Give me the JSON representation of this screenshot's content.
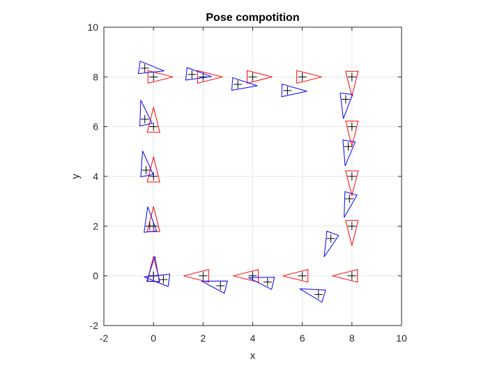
{
  "chart_data": {
    "type": "scatter",
    "title": "Pose compotition",
    "xlabel": "x",
    "ylabel": "y",
    "xlim": [
      -2,
      10
    ],
    "ylim": [
      -2,
      10
    ],
    "xticks": [
      "-2",
      "0",
      "2",
      "4",
      "6",
      "8",
      "10"
    ],
    "yticks": [
      "-2",
      "0",
      "2",
      "4",
      "6",
      "8",
      "10"
    ],
    "grid": true,
    "marker": "triangle with + at pose position, apex pointing along heading",
    "series": [
      {
        "color": "#ff0000",
        "points": [
          {
            "x": 0,
            "y": 0,
            "theta_deg": 90
          },
          {
            "x": 0,
            "y": 2,
            "theta_deg": 90
          },
          {
            "x": 0,
            "y": 4,
            "theta_deg": 90
          },
          {
            "x": 0,
            "y": 6,
            "theta_deg": 90
          },
          {
            "x": 0,
            "y": 8,
            "theta_deg": 0
          },
          {
            "x": 2,
            "y": 8,
            "theta_deg": 0
          },
          {
            "x": 4,
            "y": 8,
            "theta_deg": 0
          },
          {
            "x": 6,
            "y": 8,
            "theta_deg": 0
          },
          {
            "x": 8,
            "y": 8,
            "theta_deg": -90
          },
          {
            "x": 8,
            "y": 6,
            "theta_deg": -90
          },
          {
            "x": 8,
            "y": 4,
            "theta_deg": -90
          },
          {
            "x": 8,
            "y": 2,
            "theta_deg": -90
          },
          {
            "x": 8,
            "y": 0,
            "theta_deg": 180
          },
          {
            "x": 6,
            "y": 0,
            "theta_deg": 180
          },
          {
            "x": 4,
            "y": 0,
            "theta_deg": 180
          },
          {
            "x": 2,
            "y": 0,
            "theta_deg": 180
          }
        ]
      },
      {
        "color": "#0000ff",
        "points": [
          {
            "x": 0,
            "y": 0,
            "theta_deg": 86
          },
          {
            "x": -0.15,
            "y": 2.0,
            "theta_deg": 96
          },
          {
            "x": -0.3,
            "y": 4.25,
            "theta_deg": 100
          },
          {
            "x": -0.35,
            "y": 6.3,
            "theta_deg": 102
          },
          {
            "x": -0.35,
            "y": 8.35,
            "theta_deg": -8
          },
          {
            "x": 1.55,
            "y": 8.1,
            "theta_deg": -6
          },
          {
            "x": 3.4,
            "y": 7.7,
            "theta_deg": -4
          },
          {
            "x": 5.4,
            "y": 7.45,
            "theta_deg": -2
          },
          {
            "x": 7.75,
            "y": 7.1,
            "theta_deg": -97
          },
          {
            "x": 7.85,
            "y": 5.2,
            "theta_deg": -99
          },
          {
            "x": 7.9,
            "y": 3.1,
            "theta_deg": -106
          },
          {
            "x": 7.15,
            "y": 1.5,
            "theta_deg": -110
          },
          {
            "x": 6.65,
            "y": -0.75,
            "theta_deg": 163
          },
          {
            "x": 4.6,
            "y": -0.25,
            "theta_deg": 167
          },
          {
            "x": 2.7,
            "y": -0.4,
            "theta_deg": 166
          },
          {
            "x": 0.4,
            "y": -0.15,
            "theta_deg": 172
          }
        ]
      }
    ]
  }
}
